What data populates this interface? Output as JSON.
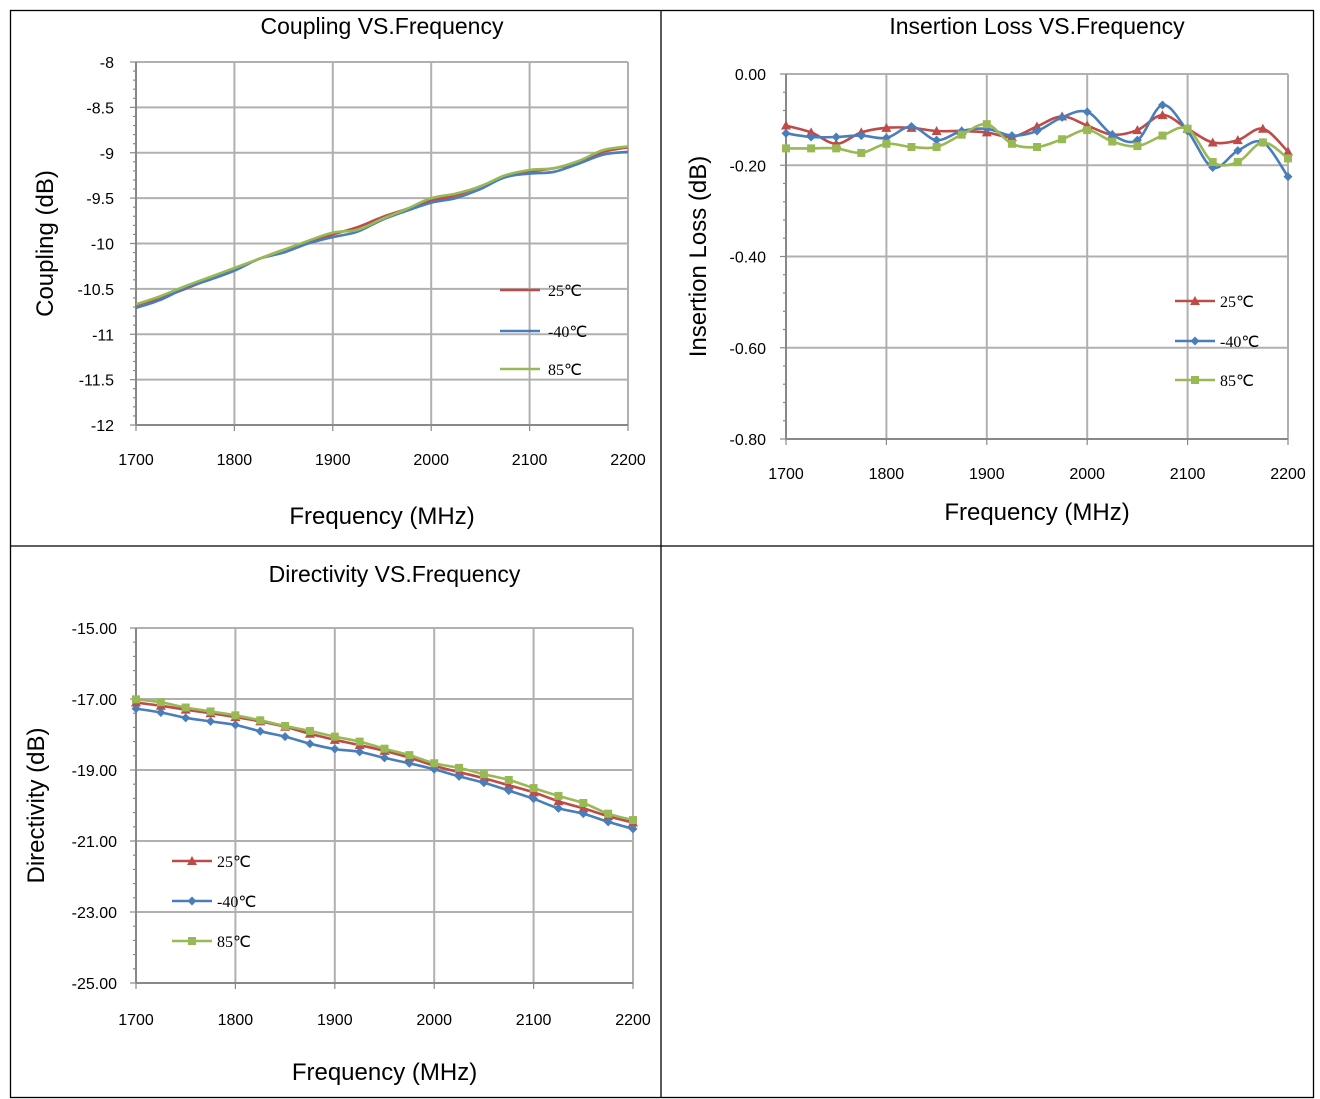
{
  "colors": {
    "t25": "#be4b48",
    "tm40": "#4a7ebb",
    "t85": "#98b954"
  },
  "chart_data": [
    {
      "type": "line",
      "title": "Coupling VS.Frequency",
      "xlabel": "Frequency (MHz)",
      "ylabel": "Coupling  (dB)",
      "xlim": [
        1700,
        2200
      ],
      "ylim": [
        -12,
        -8
      ],
      "xticks": [
        "1700",
        "1800",
        "1900",
        "2000",
        "2100",
        "2200"
      ],
      "yticks": [
        "-8",
        "-8.5",
        "-9",
        "-9.5",
        "-10",
        "-10.5",
        "-11",
        "-11.5",
        "-12"
      ],
      "grid": true,
      "legend": "right",
      "markers": false,
      "series": [
        {
          "name": "25℃",
          "color": "#be4b48",
          "x": [
            1700,
            1725,
            1750,
            1775,
            1800,
            1825,
            1850,
            1875,
            1900,
            1925,
            1950,
            1975,
            2000,
            2025,
            2050,
            2075,
            2100,
            2125,
            2150,
            2175,
            2200
          ],
          "y": [
            -10.68,
            -10.6,
            -10.5,
            -10.39,
            -10.28,
            -10.17,
            -10.07,
            -9.99,
            -9.9,
            -9.82,
            -9.71,
            -9.62,
            -9.53,
            -9.47,
            -9.37,
            -9.27,
            -9.21,
            -9.17,
            -9.11,
            -8.99,
            -8.94
          ]
        },
        {
          "name": "-40℃",
          "color": "#4a7ebb",
          "x": [
            1700,
            1725,
            1750,
            1775,
            1800,
            1825,
            1850,
            1875,
            1900,
            1925,
            1950,
            1975,
            2000,
            2025,
            2050,
            2075,
            2100,
            2125,
            2150,
            2175,
            2200
          ],
          "y": [
            -10.71,
            -10.62,
            -10.49,
            -10.4,
            -10.3,
            -10.17,
            -10.1,
            -10.0,
            -9.93,
            -9.87,
            -9.74,
            -9.64,
            -9.55,
            -9.5,
            -9.4,
            -9.27,
            -9.23,
            -9.21,
            -9.12,
            -9.02,
            -8.99
          ]
        },
        {
          "name": "85℃",
          "color": "#98b954",
          "x": [
            1700,
            1725,
            1750,
            1775,
            1800,
            1825,
            1850,
            1875,
            1900,
            1925,
            1950,
            1975,
            2000,
            2025,
            2050,
            2075,
            2100,
            2125,
            2150,
            2175,
            2200
          ],
          "y": [
            -10.67,
            -10.58,
            -10.47,
            -10.37,
            -10.27,
            -10.17,
            -10.07,
            -9.97,
            -9.88,
            -9.85,
            -9.73,
            -9.62,
            -9.5,
            -9.45,
            -9.37,
            -9.25,
            -9.19,
            -9.17,
            -9.09,
            -8.97,
            -8.93
          ]
        }
      ]
    },
    {
      "type": "line",
      "title": "Insertion Loss VS.Frequency",
      "xlabel": "Frequency (MHz)",
      "ylabel": "Insertion Loss (dB)",
      "xlim": [
        1700,
        2200
      ],
      "ylim": [
        -0.8,
        0.0
      ],
      "xticks": [
        "1700",
        "1800",
        "1900",
        "2000",
        "2100",
        "2200"
      ],
      "yticks": [
        "0.00",
        "-0.20",
        "-0.40",
        "-0.60",
        "-0.80"
      ],
      "grid": true,
      "legend": "right",
      "markers": true,
      "series": [
        {
          "name": "25℃",
          "color": "#be4b48",
          "marker": "triangle",
          "x": [
            1700,
            1725,
            1750,
            1775,
            1800,
            1825,
            1850,
            1875,
            1900,
            1925,
            1950,
            1975,
            2000,
            2025,
            2050,
            2075,
            2100,
            2125,
            2150,
            2175,
            2200
          ],
          "y": [
            -0.113,
            -0.128,
            -0.153,
            -0.128,
            -0.118,
            -0.118,
            -0.125,
            -0.125,
            -0.128,
            -0.138,
            -0.115,
            -0.093,
            -0.113,
            -0.133,
            -0.123,
            -0.09,
            -0.12,
            -0.15,
            -0.145,
            -0.12,
            -0.17
          ]
        },
        {
          "name": "-40℃",
          "color": "#4a7ebb",
          "marker": "diamond",
          "x": [
            1700,
            1725,
            1750,
            1775,
            1800,
            1825,
            1850,
            1875,
            1900,
            1925,
            1950,
            1975,
            2000,
            2025,
            2050,
            2075,
            2100,
            2125,
            2150,
            2175,
            2200
          ],
          "y": [
            -0.13,
            -0.138,
            -0.138,
            -0.135,
            -0.14,
            -0.115,
            -0.145,
            -0.125,
            -0.12,
            -0.135,
            -0.125,
            -0.095,
            -0.083,
            -0.133,
            -0.145,
            -0.068,
            -0.125,
            -0.205,
            -0.168,
            -0.15,
            -0.225
          ]
        },
        {
          "name": "85℃",
          "color": "#98b954",
          "marker": "square",
          "x": [
            1700,
            1725,
            1750,
            1775,
            1800,
            1825,
            1850,
            1875,
            1900,
            1925,
            1950,
            1975,
            2000,
            2025,
            2050,
            2075,
            2100,
            2125,
            2150,
            2175,
            2200
          ],
          "y": [
            -0.163,
            -0.163,
            -0.163,
            -0.173,
            -0.153,
            -0.16,
            -0.16,
            -0.133,
            -0.11,
            -0.153,
            -0.16,
            -0.143,
            -0.123,
            -0.148,
            -0.158,
            -0.135,
            -0.12,
            -0.193,
            -0.193,
            -0.15,
            -0.185
          ]
        }
      ]
    },
    {
      "type": "line",
      "title": "Directivity VS.Frequency",
      "xlabel": "Frequency (MHz)",
      "ylabel": "Directivity (dB)",
      "xlim": [
        1700,
        2200
      ],
      "ylim": [
        -25,
        -15
      ],
      "xticks": [
        "1700",
        "1800",
        "1900",
        "2000",
        "2100",
        "2200"
      ],
      "yticks": [
        "-15.00",
        "-17.00",
        "-19.00",
        "-21.00",
        "-23.00",
        "-25.00"
      ],
      "grid": true,
      "legend": "left",
      "markers": true,
      "series": [
        {
          "name": "25℃",
          "color": "#be4b48",
          "marker": "triangle",
          "x": [
            1700,
            1725,
            1750,
            1775,
            1800,
            1825,
            1850,
            1875,
            1900,
            1925,
            1950,
            1975,
            2000,
            2025,
            2050,
            2075,
            2100,
            2125,
            2150,
            2175,
            2200
          ],
          "y": [
            -17.1,
            -17.19,
            -17.3,
            -17.4,
            -17.51,
            -17.63,
            -17.78,
            -17.98,
            -18.15,
            -18.3,
            -18.46,
            -18.65,
            -18.88,
            -19.06,
            -19.23,
            -19.43,
            -19.63,
            -19.88,
            -20.08,
            -20.3,
            -20.48
          ]
        },
        {
          "name": "-40℃",
          "color": "#4a7ebb",
          "marker": "diamond",
          "x": [
            1700,
            1725,
            1750,
            1775,
            1800,
            1825,
            1850,
            1875,
            1900,
            1925,
            1950,
            1975,
            2000,
            2025,
            2050,
            2075,
            2100,
            2125,
            2150,
            2175,
            2200
          ],
          "y": [
            -17.27,
            -17.38,
            -17.53,
            -17.63,
            -17.73,
            -17.91,
            -18.06,
            -18.26,
            -18.41,
            -18.49,
            -18.66,
            -18.81,
            -18.98,
            -19.18,
            -19.36,
            -19.58,
            -19.81,
            -20.08,
            -20.23,
            -20.46,
            -20.66
          ]
        },
        {
          "name": "85℃",
          "color": "#98b954",
          "marker": "square",
          "x": [
            1700,
            1725,
            1750,
            1775,
            1800,
            1825,
            1850,
            1875,
            1900,
            1925,
            1950,
            1975,
            2000,
            2025,
            2050,
            2075,
            2100,
            2125,
            2150,
            2175,
            2200
          ],
          "y": [
            -17.01,
            -17.09,
            -17.24,
            -17.35,
            -17.46,
            -17.6,
            -17.76,
            -17.9,
            -18.06,
            -18.2,
            -18.4,
            -18.58,
            -18.81,
            -18.94,
            -19.12,
            -19.28,
            -19.51,
            -19.73,
            -19.93,
            -20.23,
            -20.41
          ]
        }
      ]
    }
  ]
}
